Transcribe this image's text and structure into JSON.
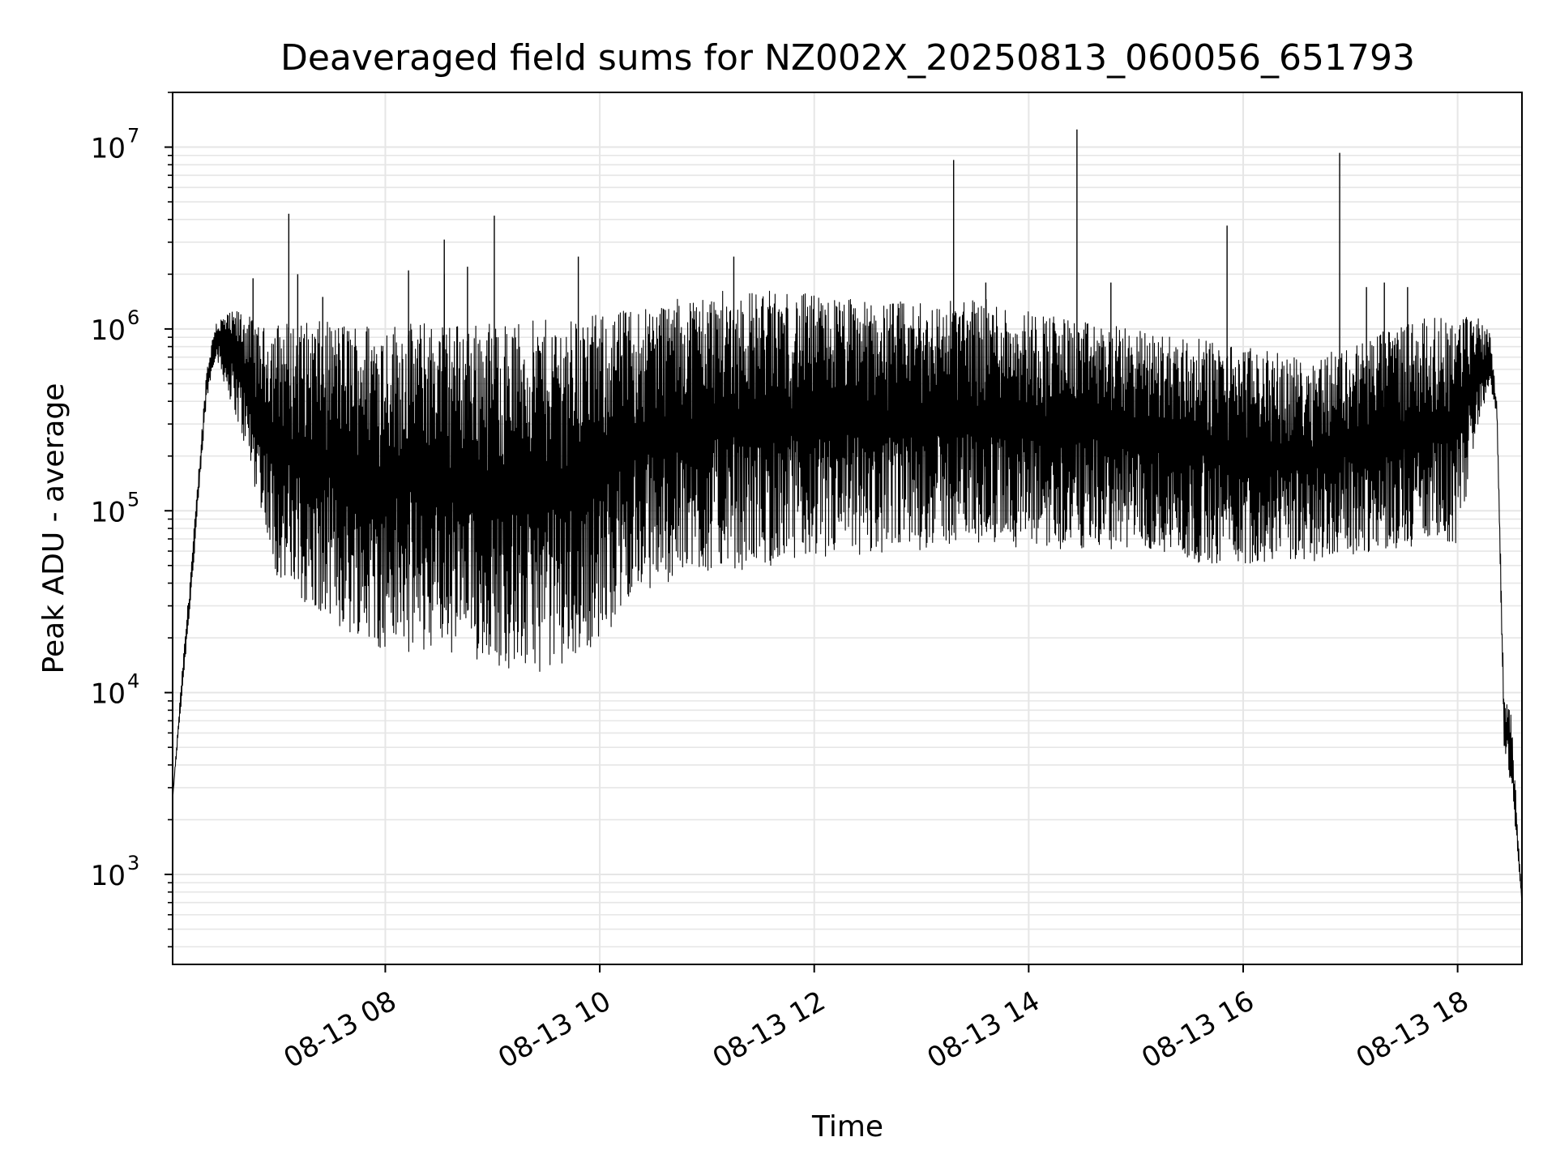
{
  "chart_data": {
    "type": "line",
    "title": "Deaveraged field sums for NZ002X_20250813_060056_651793",
    "xlabel": "Time",
    "ylabel": "Peak ADU - average",
    "y_scale": "log",
    "ylim": [
      320,
      20000000
    ],
    "xlim": [
      "2025-08-13T06:01:00",
      "2025-08-13T18:36:00"
    ],
    "grid": true,
    "line_color": "#000000",
    "grid_color": "#e6e6e6",
    "x_ticks": [
      {
        "value": "2025-08-13T08:00:00",
        "label": "08-13 08"
      },
      {
        "value": "2025-08-13T10:00:00",
        "label": "08-13 10"
      },
      {
        "value": "2025-08-13T12:00:00",
        "label": "08-13 12"
      },
      {
        "value": "2025-08-13T14:00:00",
        "label": "08-13 14"
      },
      {
        "value": "2025-08-13T16:00:00",
        "label": "08-13 16"
      },
      {
        "value": "2025-08-13T18:00:00",
        "label": "08-13 18"
      }
    ],
    "y_ticks": [
      {
        "value": 1000,
        "base": "10",
        "exp": "3"
      },
      {
        "value": 10000,
        "base": "10",
        "exp": "4"
      },
      {
        "value": 100000,
        "base": "10",
        "exp": "5"
      },
      {
        "value": 1000000,
        "base": "10",
        "exp": "6"
      },
      {
        "value": 10000000,
        "base": "10",
        "exp": "7"
      }
    ],
    "envelope": [
      {
        "x": "2025-08-13T06:01:00",
        "high": 2600,
        "low": 2600
      },
      {
        "x": "2025-08-13T06:06:00",
        "high": 12000,
        "low": 9000
      },
      {
        "x": "2025-08-13T06:12:00",
        "high": 60000,
        "low": 40000
      },
      {
        "x": "2025-08-13T06:20:00",
        "high": 600000,
        "low": 400000
      },
      {
        "x": "2025-08-13T06:25:00",
        "high": 1100000,
        "low": 700000
      },
      {
        "x": "2025-08-13T06:30:00",
        "high": 1200000,
        "low": 500000
      },
      {
        "x": "2025-08-13T06:40:00",
        "high": 1300000,
        "low": 250000
      },
      {
        "x": "2025-08-13T06:50:00",
        "high": 1000000,
        "low": 100000
      },
      {
        "x": "2025-08-13T07:00:00",
        "high": 1100000,
        "low": 40000
      },
      {
        "x": "2025-08-13T07:20:00",
        "high": 1100000,
        "low": 25000
      },
      {
        "x": "2025-08-13T07:40:00",
        "high": 1100000,
        "low": 20000
      },
      {
        "x": "2025-08-13T08:00:00",
        "high": 1100000,
        "low": 17000
      },
      {
        "x": "2025-08-13T08:30:00",
        "high": 1100000,
        "low": 16000
      },
      {
        "x": "2025-08-13T09:00:00",
        "high": 1100000,
        "low": 14000
      },
      {
        "x": "2025-08-13T09:20:00",
        "high": 1100000,
        "low": 12000
      },
      {
        "x": "2025-08-13T09:40:00",
        "high": 1150000,
        "low": 14000
      },
      {
        "x": "2025-08-13T10:00:00",
        "high": 1200000,
        "low": 18000
      },
      {
        "x": "2025-08-13T10:15:00",
        "high": 1300000,
        "low": 30000
      },
      {
        "x": "2025-08-13T10:30:00",
        "high": 1400000,
        "low": 38000
      },
      {
        "x": "2025-08-13T11:00:00",
        "high": 1600000,
        "low": 45000
      },
      {
        "x": "2025-08-13T11:30:00",
        "high": 1650000,
        "low": 48000
      },
      {
        "x": "2025-08-13T12:00:00",
        "high": 1550000,
        "low": 50000
      },
      {
        "x": "2025-08-13T12:30:00",
        "high": 1450000,
        "low": 55000
      },
      {
        "x": "2025-08-13T13:00:00",
        "high": 1400000,
        "low": 60000
      },
      {
        "x": "2025-08-13T13:30:00",
        "high": 1500000,
        "low": 65000
      },
      {
        "x": "2025-08-13T14:00:00",
        "high": 1300000,
        "low": 60000
      },
      {
        "x": "2025-08-13T14:30:00",
        "high": 1100000,
        "low": 60000
      },
      {
        "x": "2025-08-13T15:00:00",
        "high": 1000000,
        "low": 60000
      },
      {
        "x": "2025-08-13T15:30:00",
        "high": 900000,
        "low": 50000
      },
      {
        "x": "2025-08-13T16:00:00",
        "high": 800000,
        "low": 50000
      },
      {
        "x": "2025-08-13T16:30:00",
        "high": 700000,
        "low": 50000
      },
      {
        "x": "2025-08-13T17:00:00",
        "high": 800000,
        "low": 55000
      },
      {
        "x": "2025-08-13T17:30:00",
        "high": 1100000,
        "low": 60000
      },
      {
        "x": "2025-08-13T18:00:00",
        "high": 1200000,
        "low": 60000
      },
      {
        "x": "2025-08-13T18:10:00",
        "high": 1200000,
        "low": 250000
      },
      {
        "x": "2025-08-13T18:18:00",
        "high": 1000000,
        "low": 500000
      },
      {
        "x": "2025-08-13T18:22:00",
        "high": 400000,
        "low": 300000
      },
      {
        "x": "2025-08-13T18:26:00",
        "high": 9000,
        "low": 5000
      },
      {
        "x": "2025-08-13T18:30:00",
        "high": 8000,
        "low": 3000
      },
      {
        "x": "2025-08-13T18:36:00",
        "high": 700,
        "low": 700
      }
    ],
    "spikes": [
      {
        "x": "2025-08-13T06:46:00",
        "y": 1900000
      },
      {
        "x": "2025-08-13T07:06:00",
        "y": 4300000
      },
      {
        "x": "2025-08-13T07:11:00",
        "y": 2000000
      },
      {
        "x": "2025-08-13T07:25:00",
        "y": 1500000
      },
      {
        "x": "2025-08-13T08:13:00",
        "y": 2100000
      },
      {
        "x": "2025-08-13T08:33:00",
        "y": 2000000
      },
      {
        "x": "2025-08-13T08:33:00",
        "y": 3100000
      },
      {
        "x": "2025-08-13T08:46:00",
        "y": 2200000
      },
      {
        "x": "2025-08-13T09:01:00",
        "y": 4200000
      },
      {
        "x": "2025-08-13T09:48:00",
        "y": 2500000
      },
      {
        "x": "2025-08-13T11:15:00",
        "y": 2500000
      },
      {
        "x": "2025-08-13T13:18:00",
        "y": 8500000
      },
      {
        "x": "2025-08-13T13:36:00",
        "y": 1800000
      },
      {
        "x": "2025-08-13T14:27:00",
        "y": 12500000
      },
      {
        "x": "2025-08-13T14:46:00",
        "y": 1800000
      },
      {
        "x": "2025-08-13T15:51:00",
        "y": 3700000
      },
      {
        "x": "2025-08-13T16:54:00",
        "y": 9300000
      },
      {
        "x": "2025-08-13T17:09:00",
        "y": 1700000
      },
      {
        "x": "2025-08-13T17:19:00",
        "y": 1800000
      },
      {
        "x": "2025-08-13T17:32:00",
        "y": 1700000
      }
    ]
  }
}
